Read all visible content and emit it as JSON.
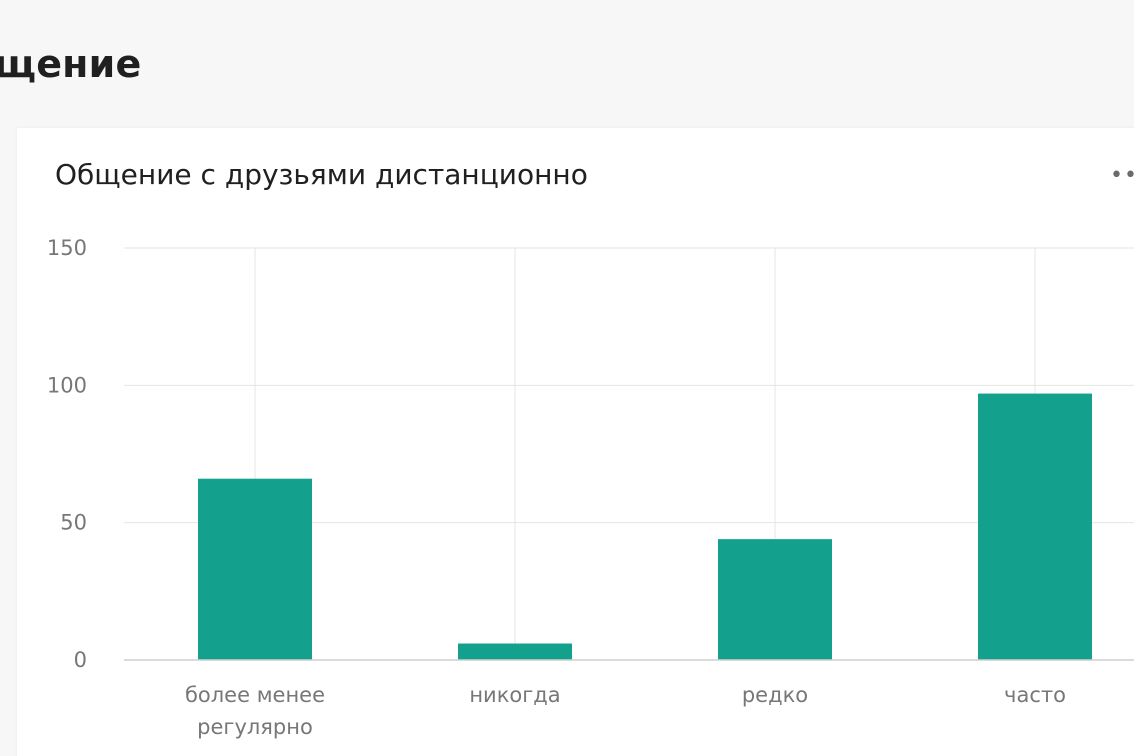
{
  "section": {
    "title": "щение"
  },
  "card": {
    "title": "Общение с друзьями дистанционно",
    "menu_icon": "more-dots-icon"
  },
  "colors": {
    "bar": "#13a08c",
    "grid": "#e4e4e4",
    "axis": "#cfcfcf",
    "tick_text": "#777777"
  },
  "chart_data": {
    "type": "bar",
    "title": "Общение с друзьями дистанционно",
    "categories": [
      "более менее регулярно",
      "никогда",
      "редко",
      "часто"
    ],
    "category_lines": [
      [
        "более менее",
        "регулярно"
      ],
      [
        "никогда"
      ],
      [
        "редко"
      ],
      [
        "часто"
      ]
    ],
    "values": [
      66,
      6,
      44,
      97
    ],
    "y_ticks": [
      0,
      50,
      100,
      150
    ],
    "ylim": [
      0,
      150
    ],
    "xlabel": "",
    "ylabel": "",
    "grid": true,
    "legend": "none"
  }
}
